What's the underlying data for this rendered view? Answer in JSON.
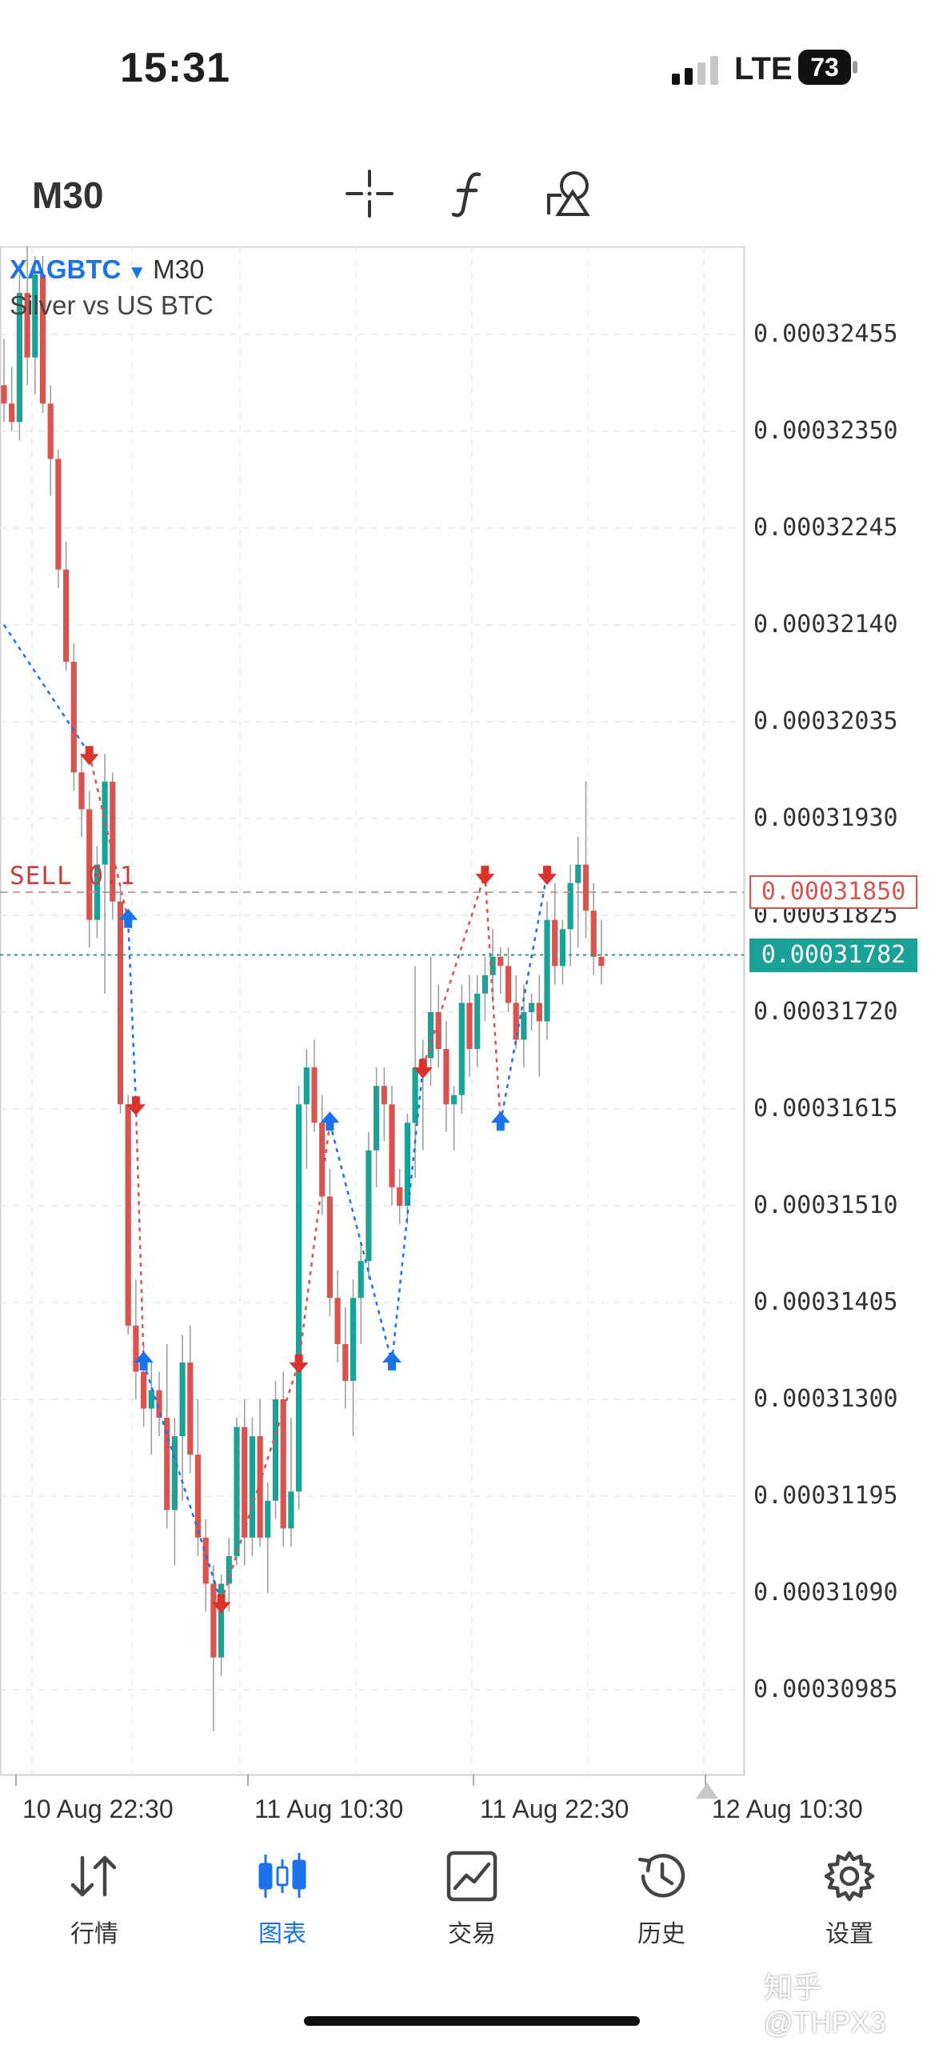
{
  "status_bar": {
    "time": "15:31",
    "network": "LTE",
    "battery": "73"
  },
  "toolbar": {
    "timeframe": "M30",
    "icons": [
      "crosshair-icon",
      "indicator-function-icon",
      "objects-shapes-icon"
    ]
  },
  "chart": {
    "symbol": "XAGBTC",
    "timeframe": "M30",
    "description": "Silver vs US BTC",
    "price_labels": [
      "0.00032455",
      "0.00032350",
      "0.00032245",
      "0.00032140",
      "0.00032035",
      "0.00031930",
      "0.00031825",
      "0.00031720",
      "0.00031615",
      "0.00031510",
      "0.00031405",
      "0.00031300",
      "0.00031195",
      "0.00031090",
      "0.00030985"
    ],
    "order_line": {
      "label": "SELL 0.1",
      "price": "0.00031850",
      "color": "#d9534f"
    },
    "bid_line": {
      "price": "0.00031782",
      "color": "#1ba297"
    },
    "time_labels": [
      "10 Aug 22:30",
      "11 Aug 10:30",
      "11 Aug 22:30",
      "12 Aug 10:30"
    ],
    "colors": {
      "bull": "#1ba297",
      "bear": "#d9534f",
      "buy_arrow": "#1a73e8",
      "sell_arrow": "#d9342b"
    }
  },
  "chart_data": {
    "type": "candlestick",
    "ylim": [
      0.0003094,
      0.0003248
    ],
    "candles": [
      [
        0.000324,
        0.0003245,
        0.0003236,
        0.0003238
      ],
      [
        0.0003238,
        0.0003242,
        0.0003235,
        0.0003236
      ],
      [
        0.0003236,
        0.0003252,
        0.0003234,
        0.000325
      ],
      [
        0.000325,
        0.0003258,
        0.000324,
        0.0003243
      ],
      [
        0.0003243,
        0.0003254,
        0.0003239,
        0.0003252
      ],
      [
        0.0003252,
        0.0003254,
        0.0003237,
        0.0003238
      ],
      [
        0.0003238,
        0.000324,
        0.0003228,
        0.0003232
      ],
      [
        0.0003232,
        0.0003233,
        0.0003218,
        0.000322
      ],
      [
        0.000322,
        0.0003223,
        0.0003209,
        0.000321
      ],
      [
        0.000321,
        0.0003212,
        0.0003196,
        0.0003198
      ],
      [
        0.0003198,
        0.00032,
        0.0003191,
        0.0003194
      ],
      [
        0.0003194,
        0.0003196,
        0.0003179,
        0.0003182
      ],
      [
        0.0003182,
        0.000319,
        0.000318,
        0.0003188
      ],
      [
        0.0003188,
        0.00032,
        0.0003174,
        0.0003197
      ],
      [
        0.0003197,
        0.0003198,
        0.0003182,
        0.0003184
      ],
      [
        0.0003184,
        0.0003186,
        0.0003161,
        0.0003162
      ],
      [
        0.0003162,
        0.0003163,
        0.0003137,
        0.0003138
      ],
      [
        0.0003138,
        0.0003143,
        0.000313,
        0.0003133
      ],
      [
        0.0003133,
        0.0003136,
        0.0003127,
        0.0003129
      ],
      [
        0.0003129,
        0.0003134,
        0.0003124,
        0.0003131
      ],
      [
        0.0003131,
        0.0003133,
        0.0003126,
        0.0003128
      ],
      [
        0.0003128,
        0.0003136,
        0.0003116,
        0.0003118
      ],
      [
        0.0003118,
        0.0003128,
        0.0003112,
        0.0003126
      ],
      [
        0.0003126,
        0.0003137,
        0.0003119,
        0.0003134
      ],
      [
        0.0003134,
        0.0003138,
        0.0003122,
        0.0003124
      ],
      [
        0.0003124,
        0.000313,
        0.0003113,
        0.0003115
      ],
      [
        0.0003115,
        0.0003117,
        0.0003107,
        0.000311
      ],
      [
        0.000311,
        0.0003112,
        0.0003094,
        0.0003102
      ],
      [
        0.0003102,
        0.0003111,
        0.00031,
        0.000311
      ],
      [
        0.000311,
        0.0003115,
        0.0003107,
        0.0003113
      ],
      [
        0.0003113,
        0.0003128,
        0.0003112,
        0.0003127
      ],
      [
        0.0003127,
        0.000313,
        0.0003112,
        0.0003115
      ],
      [
        0.0003115,
        0.0003128,
        0.0003113,
        0.0003126
      ],
      [
        0.0003126,
        0.000313,
        0.0003114,
        0.0003115
      ],
      [
        0.0003115,
        0.0003121,
        0.0003109,
        0.0003119
      ],
      [
        0.0003119,
        0.0003132,
        0.0003117,
        0.000313
      ],
      [
        0.000313,
        0.0003133,
        0.0003114,
        0.0003116
      ],
      [
        0.0003116,
        0.0003128,
        0.0003114,
        0.000312
      ],
      [
        0.000312,
        0.0003164,
        0.0003118,
        0.0003162
      ],
      [
        0.0003162,
        0.0003168,
        0.0003155,
        0.0003166
      ],
      [
        0.0003166,
        0.0003169,
        0.0003159,
        0.000316
      ],
      [
        0.000316,
        0.0003163,
        0.000315,
        0.0003152
      ],
      [
        0.0003152,
        0.0003155,
        0.0003139,
        0.0003141
      ],
      [
        0.0003141,
        0.0003144,
        0.0003134,
        0.0003136
      ],
      [
        0.0003136,
        0.000314,
        0.0003129,
        0.0003132
      ],
      [
        0.0003132,
        0.0003143,
        0.0003126,
        0.0003141
      ],
      [
        0.0003141,
        0.0003147,
        0.0003136,
        0.0003145
      ],
      [
        0.0003145,
        0.0003159,
        0.0003143,
        0.0003157
      ],
      [
        0.0003157,
        0.0003166,
        0.0003153,
        0.0003164
      ],
      [
        0.0003164,
        0.0003166,
        0.0003158,
        0.0003162
      ],
      [
        0.0003162,
        0.0003164,
        0.0003151,
        0.0003153
      ],
      [
        0.0003153,
        0.0003155,
        0.0003149,
        0.0003151
      ],
      [
        0.0003151,
        0.0003161,
        0.0003149,
        0.000316
      ],
      [
        0.000316,
        0.0003177,
        0.0003154,
        0.0003166
      ],
      [
        0.0003166,
        0.0003169,
        0.0003157,
        0.0003167
      ],
      [
        0.0003167,
        0.0003178,
        0.0003164,
        0.0003172
      ],
      [
        0.0003172,
        0.0003175,
        0.0003166,
        0.0003168
      ],
      [
        0.0003168,
        0.0003171,
        0.0003159,
        0.0003162
      ],
      [
        0.0003162,
        0.0003164,
        0.0003157,
        0.0003163
      ],
      [
        0.0003163,
        0.0003175,
        0.0003161,
        0.0003173
      ],
      [
        0.0003173,
        0.0003176,
        0.0003165,
        0.0003168
      ],
      [
        0.0003168,
        0.0003176,
        0.0003166,
        0.0003174
      ],
      [
        0.0003174,
        0.0003178,
        0.0003171,
        0.0003176
      ],
      [
        0.0003176,
        0.0003181,
        0.0003173,
        0.0003178
      ],
      [
        0.0003178,
        0.0003179,
        0.0003174,
        0.0003177
      ],
      [
        0.0003177,
        0.0003179,
        0.0003172,
        0.0003173
      ],
      [
        0.0003173,
        0.0003176,
        0.0003168,
        0.0003169
      ],
      [
        0.0003169,
        0.0003175,
        0.0003166,
        0.0003172
      ],
      [
        0.0003172,
        0.0003174,
        0.000317,
        0.0003173
      ],
      [
        0.0003173,
        0.0003176,
        0.0003165,
        0.0003171
      ],
      [
        0.0003171,
        0.0003184,
        0.0003169,
        0.0003182
      ],
      [
        0.0003182,
        0.0003186,
        0.0003175,
        0.0003177
      ],
      [
        0.0003177,
        0.0003182,
        0.0003175,
        0.0003181
      ],
      [
        0.0003181,
        0.0003188,
        0.0003177,
        0.0003186
      ],
      [
        0.0003186,
        0.0003191,
        0.0003179,
        0.0003188
      ],
      [
        0.0003188,
        0.0003197,
        0.000318,
        0.0003183
      ],
      [
        0.0003183,
        0.0003186,
        0.0003176,
        0.0003178
      ],
      [
        0.0003178,
        0.0003182,
        0.0003175,
        0.0003177
      ]
    ],
    "trade_path_points": [
      {
        "candle": 0,
        "price": 0.0003214,
        "marker": "none"
      },
      {
        "candle": 11,
        "price": 0.00032,
        "marker": "sell"
      },
      {
        "candle": 16,
        "price": 0.0003182,
        "marker": "buy"
      },
      {
        "candle": 17,
        "price": 0.0003162,
        "marker": "sell"
      },
      {
        "candle": 18,
        "price": 0.0003134,
        "marker": "buy"
      },
      {
        "candle": 28,
        "price": 0.0003108,
        "marker": "sell"
      },
      {
        "candle": 38,
        "price": 0.0003134,
        "marker": "sell"
      },
      {
        "candle": 42,
        "price": 0.000316,
        "marker": "buy"
      },
      {
        "candle": 50,
        "price": 0.0003134,
        "marker": "buy"
      },
      {
        "candle": 54,
        "price": 0.0003166,
        "marker": "sell"
      },
      {
        "candle": 62,
        "price": 0.0003187,
        "marker": "sell"
      },
      {
        "candle": 64,
        "price": 0.000316,
        "marker": "buy"
      },
      {
        "candle": 70,
        "price": 0.0003187,
        "marker": "sell"
      }
    ]
  },
  "bottom_nav": [
    {
      "label": "行情",
      "icon": "quotes-arrows-icon",
      "active": false
    },
    {
      "label": "图表",
      "icon": "chart-candles-icon",
      "active": true
    },
    {
      "label": "交易",
      "icon": "trade-chart-icon",
      "active": false
    },
    {
      "label": "历史",
      "icon": "history-clock-icon",
      "active": false
    },
    {
      "label": "设置",
      "icon": "settings-gear-icon",
      "active": false
    }
  ],
  "watermark": "知乎 @THPX3"
}
